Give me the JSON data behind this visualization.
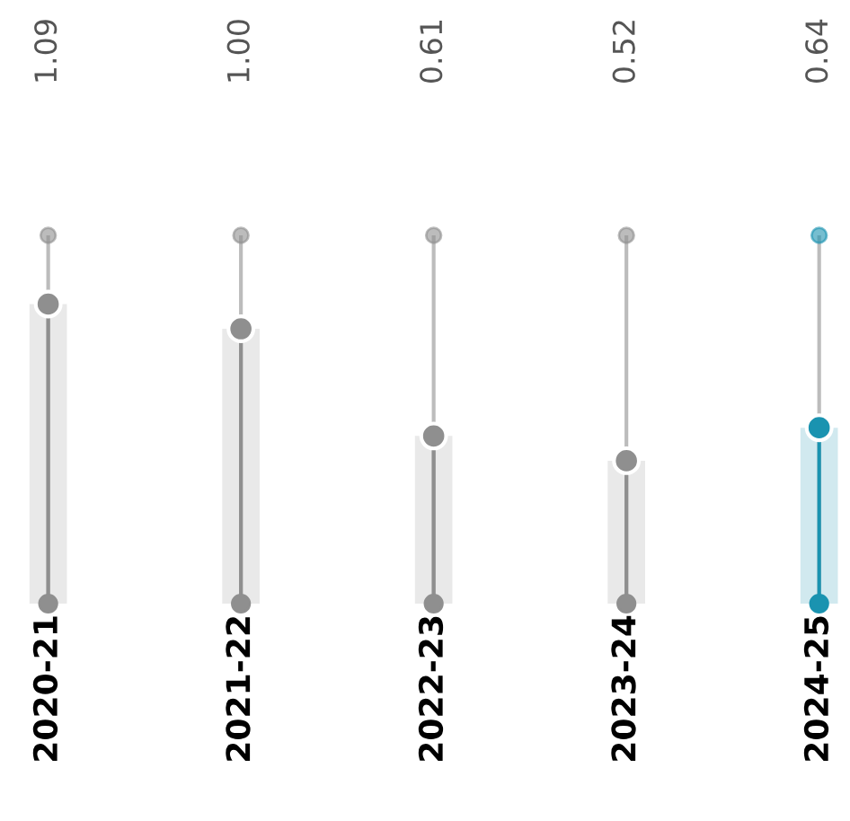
{
  "chart_data": {
    "type": "lollipop",
    "categories": [
      "2020-21",
      "2021-22",
      "2022-23",
      "2023-24",
      "2024-25"
    ],
    "values": [
      1.09,
      1.0,
      0.61,
      0.52,
      0.64
    ],
    "value_labels": [
      "1.09",
      "1.00",
      "0.61",
      "0.52",
      "0.64"
    ],
    "colors": [
      "#8f8f8f",
      "#8f8f8f",
      "#8f8f8f",
      "#8f8f8f",
      "#1a93b0"
    ],
    "ylim": [
      0,
      1.34
    ],
    "marker": "circle",
    "grid": "x",
    "legend": false
  }
}
